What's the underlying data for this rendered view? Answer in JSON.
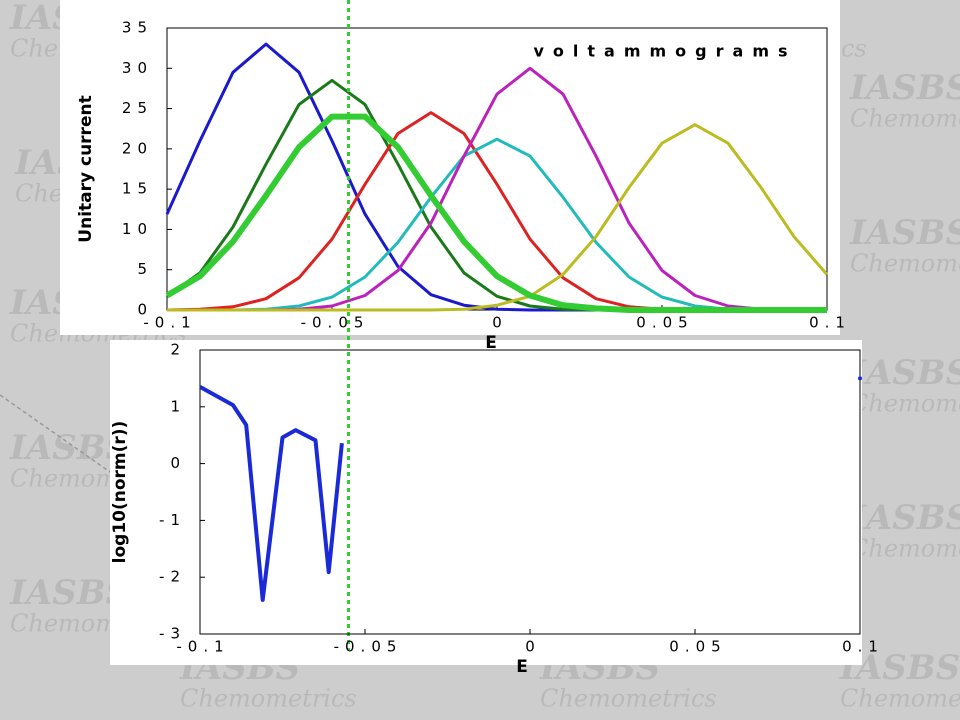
{
  "watermark": [
    "IASBS",
    "Chemometrics"
  ],
  "chart_data": [
    {
      "type": "line",
      "title": "voltammograms",
      "xlabel": "E",
      "ylabel": "Unitary current",
      "xlim": [
        -0.1,
        0.1
      ],
      "xticks": [
        -0.1,
        -0.05,
        0,
        0.05,
        0.1
      ],
      "ylim": [
        0,
        35
      ],
      "yticks": [
        0,
        5,
        10,
        15,
        20,
        25,
        30,
        35
      ],
      "vline": -0.045,
      "vline_color": "#33cc33",
      "x": [
        -0.1,
        -0.09,
        -0.08,
        -0.07,
        -0.06,
        -0.05,
        -0.04,
        -0.03,
        -0.02,
        -0.01,
        0,
        0.01,
        0.02,
        0.03,
        0.04,
        0.05,
        0.06,
        0.07,
        0.08,
        0.09,
        0.1
      ],
      "series": [
        {
          "color": "#1a1acc",
          "width": 3,
          "values": [
            11.9,
            21.0,
            29.5,
            33,
            29.5,
            21.0,
            11.9,
            5.4,
            1.9,
            0.6,
            0.1,
            0,
            0,
            0,
            0,
            0,
            0,
            0,
            0,
            0,
            0
          ]
        },
        {
          "color": "#1a7a1a",
          "width": 3,
          "values": [
            1.7,
            4.6,
            10.3,
            18.1,
            25.5,
            28.5,
            25.5,
            18.1,
            10.3,
            4.6,
            1.7,
            0.5,
            0.1,
            0,
            0,
            0,
            0,
            0,
            0,
            0,
            0
          ]
        },
        {
          "color": "#dd2222",
          "width": 3,
          "values": [
            0,
            0.1,
            0.4,
            1.4,
            4.0,
            8.8,
            15.6,
            21.9,
            24.5,
            21.9,
            15.6,
            8.8,
            4.0,
            1.4,
            0.4,
            0.1,
            0,
            0,
            0,
            0,
            0
          ]
        },
        {
          "color": "#22bbbb",
          "width": 3,
          "values": [
            0,
            0,
            0,
            0.1,
            0.5,
            1.6,
            4.1,
            8.4,
            14.0,
            19.1,
            21.2,
            19.1,
            14.0,
            8.4,
            4.1,
            1.6,
            0.5,
            0.1,
            0,
            0,
            0
          ]
        },
        {
          "color": "#bb22bb",
          "width": 3,
          "values": [
            0,
            0,
            0,
            0,
            0.1,
            0.5,
            1.8,
            4.9,
            10.8,
            19.1,
            26.8,
            30,
            26.8,
            19.1,
            10.8,
            4.9,
            1.8,
            0.5,
            0.1,
            0,
            0
          ]
        },
        {
          "color": "#bbbb22",
          "width": 3,
          "values": [
            0,
            0,
            0,
            0,
            0,
            0,
            0,
            0,
            0,
            0.1,
            0.6,
            1.7,
            4.4,
            9.1,
            15.2,
            20.7,
            23,
            20.7,
            15.2,
            9.1,
            4.4
          ]
        },
        {
          "color": "#33cc33",
          "width": 6,
          "values": [
            1.8,
            4.2,
            8.5,
            14.2,
            20.2,
            24.0,
            24.0,
            20.2,
            14.2,
            8.5,
            4.2,
            1.8,
            0.6,
            0.2,
            0,
            0,
            0,
            0,
            0,
            0,
            0
          ]
        }
      ]
    },
    {
      "type": "line",
      "xlabel": "E",
      "ylabel": "log10(norm(r))",
      "xlim": [
        -0.1,
        0.1
      ],
      "xticks": [
        -0.1,
        -0.05,
        0,
        0.05,
        0.1
      ],
      "ylim": [
        -3,
        2
      ],
      "yticks": [
        -3,
        -2,
        -1,
        0,
        1,
        2
      ],
      "x": [
        -0.1,
        -0.09,
        -0.086,
        -0.081,
        -0.075,
        -0.071,
        -0.065,
        -0.061,
        -0.057,
        0.05,
        0.1
      ],
      "series": [
        {
          "color": "#1a2ad8",
          "width": 4,
          "values": [
            1.35,
            1.03,
            0.68,
            -2.4,
            0.46,
            0.59,
            0.41,
            -1.91,
            0.36,
            null,
            1.5
          ]
        }
      ]
    }
  ]
}
